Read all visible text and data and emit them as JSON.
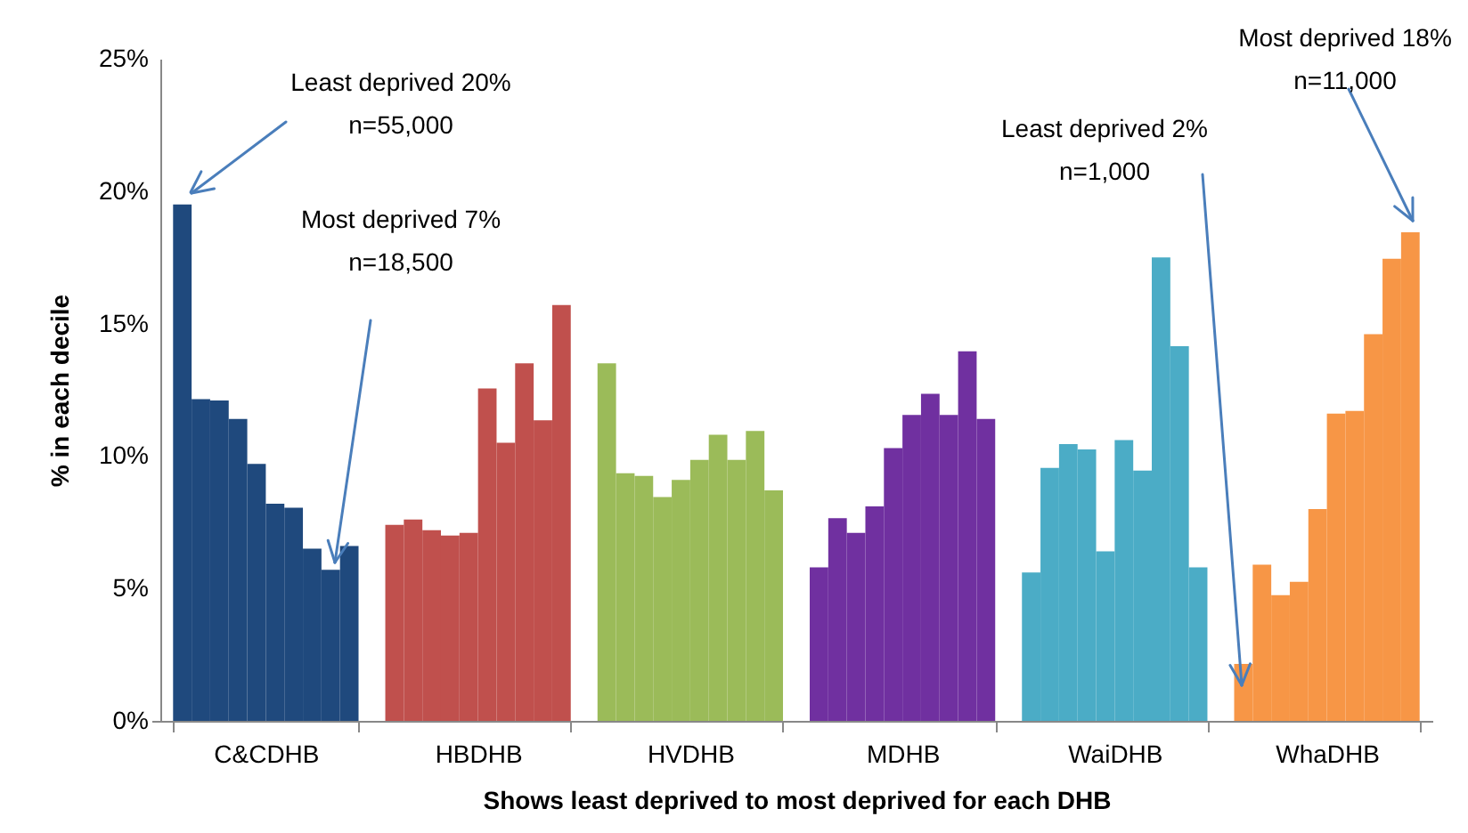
{
  "chart_data": {
    "type": "bar",
    "xlabel": "Shows least deprived to most deprived for each DHB",
    "ylabel": "% in each decile",
    "categories": [
      "C&CDHB",
      "HBDHB",
      "HVDHB",
      "MDHB",
      "WaiDHB",
      "WhaDHB"
    ],
    "ylim": [
      0,
      25
    ],
    "yticks": [
      {
        "value": 0,
        "label": "0%"
      },
      {
        "value": 5,
        "label": "5%"
      },
      {
        "value": 10,
        "label": "10%"
      },
      {
        "value": 15,
        "label": "15%"
      },
      {
        "value": 20,
        "label": "20%"
      },
      {
        "value": 25,
        "label": "25%"
      }
    ],
    "series": [
      {
        "colors": [
          "#1f497d",
          "#c0504d",
          "#9bbb59",
          "#7030a0",
          "#4bacc6",
          "#f79646"
        ],
        "values": [
          19.5,
          7.4,
          13.5,
          5.8,
          5.6,
          2.15
        ]
      },
      {
        "colors": [
          "#1f497d",
          "#c0504d",
          "#9bbb59",
          "#7030a0",
          "#4bacc6",
          "#f79646"
        ],
        "values": [
          12.15,
          7.6,
          9.35,
          7.65,
          9.55,
          5.9
        ]
      },
      {
        "colors": [
          "#1f497d",
          "#c0504d",
          "#9bbb59",
          "#7030a0",
          "#4bacc6",
          "#f79646"
        ],
        "values": [
          12.1,
          7.2,
          9.25,
          7.1,
          10.45,
          4.75
        ]
      },
      {
        "colors": [
          "#1f497d",
          "#c0504d",
          "#9bbb59",
          "#7030a0",
          "#4bacc6",
          "#f79646"
        ],
        "values": [
          11.4,
          7.0,
          8.45,
          8.1,
          10.25,
          5.25
        ]
      },
      {
        "colors": [
          "#1f497d",
          "#c0504d",
          "#9bbb59",
          "#7030a0",
          "#4bacc6",
          "#f79646"
        ],
        "values": [
          9.7,
          7.1,
          9.1,
          10.3,
          6.4,
          8.0
        ]
      },
      {
        "colors": [
          "#1f497d",
          "#c0504d",
          "#9bbb59",
          "#7030a0",
          "#4bacc6",
          "#f79646"
        ],
        "values": [
          8.2,
          12.55,
          9.85,
          11.55,
          10.6,
          11.6
        ]
      },
      {
        "colors": [
          "#1f497d",
          "#c0504d",
          "#9bbb59",
          "#7030a0",
          "#4bacc6",
          "#f79646"
        ],
        "values": [
          8.05,
          10.5,
          10.8,
          12.35,
          9.45,
          11.7
        ]
      },
      {
        "colors": [
          "#1f497d",
          "#c0504d",
          "#9bbb59",
          "#7030a0",
          "#4bacc6",
          "#f79646"
        ],
        "values": [
          6.5,
          13.5,
          9.85,
          11.55,
          17.5,
          14.6
        ]
      },
      {
        "colors": [
          "#1f497d",
          "#c0504d",
          "#9bbb59",
          "#7030a0",
          "#4bacc6",
          "#f79646"
        ],
        "values": [
          5.7,
          11.35,
          10.95,
          13.95,
          14.15,
          17.45
        ]
      },
      {
        "colors": [
          "#1f497d",
          "#c0504d",
          "#9bbb59",
          "#7030a0",
          "#4bacc6",
          "#f79646"
        ],
        "values": [
          6.6,
          15.7,
          8.7,
          11.4,
          5.8,
          18.45
        ]
      }
    ],
    "annotations": [
      "Least deprived 20%\nn=55,000",
      "Most deprived 7%\nn=18,500",
      "Least deprived 2%\nn=1,000",
      "Most deprived 18%\nn=11,000"
    ]
  }
}
